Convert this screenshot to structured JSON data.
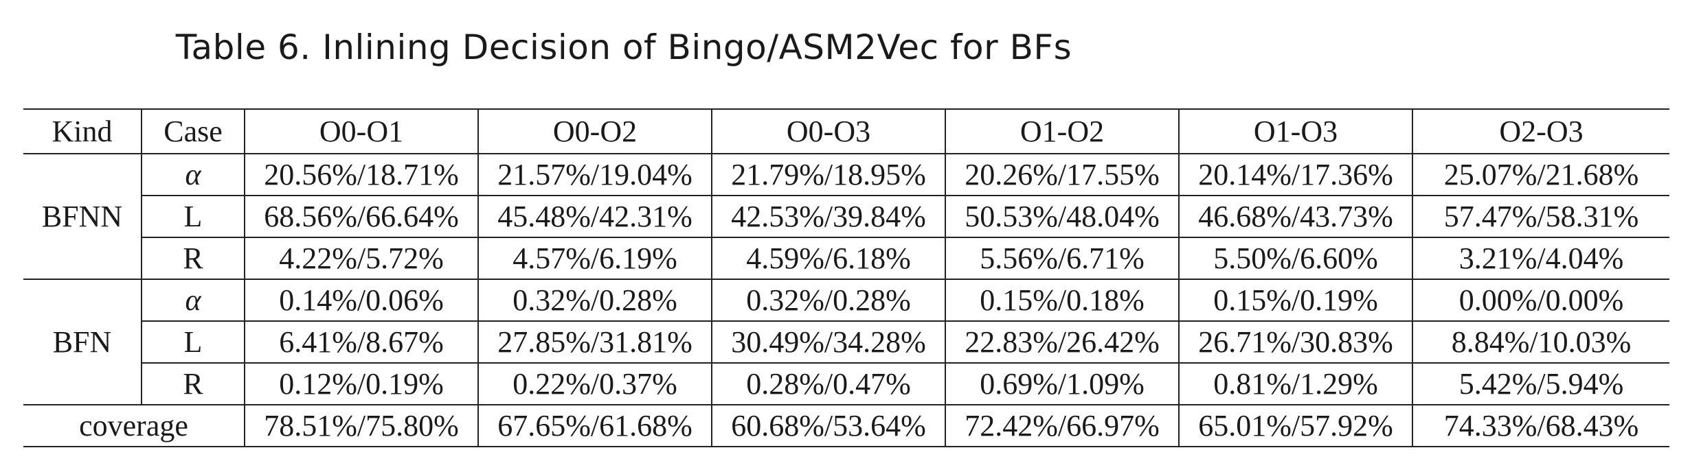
{
  "caption": "Table 6.  Inlining Decision of Bingo/ASM2Vec for BFs",
  "table": {
    "headers": [
      "Kind",
      "Case",
      "O0-O1",
      "O0-O2",
      "O0-O3",
      "O1-O2",
      "O1-O3",
      "O2-O3"
    ],
    "groups": [
      {
        "kind": "BFNN",
        "rows": [
          {
            "case": "α",
            "values": [
              "20.56%/18.71%",
              "21.57%/19.04%",
              "21.79%/18.95%",
              "20.26%/17.55%",
              "20.14%/17.36%",
              "25.07%/21.68%"
            ]
          },
          {
            "case": "L",
            "values": [
              "68.56%/66.64%",
              "45.48%/42.31%",
              "42.53%/39.84%",
              "50.53%/48.04%",
              "46.68%/43.73%",
              "57.47%/58.31%"
            ]
          },
          {
            "case": "R",
            "values": [
              "4.22%/5.72%",
              "4.57%/6.19%",
              "4.59%/6.18%",
              "5.56%/6.71%",
              "5.50%/6.60%",
              "3.21%/4.04%"
            ]
          }
        ]
      },
      {
        "kind": "BFN",
        "rows": [
          {
            "case": "α",
            "values": [
              "0.14%/0.06%",
              "0.32%/0.28%",
              "0.32%/0.28%",
              "0.15%/0.18%",
              "0.15%/0.19%",
              "0.00%/0.00%"
            ]
          },
          {
            "case": "L",
            "values": [
              "6.41%/8.67%",
              "27.85%/31.81%",
              "30.49%/34.28%",
              "22.83%/26.42%",
              "26.71%/30.83%",
              "8.84%/10.03%"
            ]
          },
          {
            "case": "R",
            "values": [
              "0.12%/0.19%",
              "0.22%/0.37%",
              "0.28%/0.47%",
              "0.69%/1.09%",
              "0.81%/1.29%",
              "5.42%/5.94%"
            ]
          }
        ]
      }
    ],
    "coverage": {
      "label": "coverage",
      "values": [
        "78.51%/75.80%",
        "67.65%/61.68%",
        "60.68%/53.64%",
        "72.42%/66.97%",
        "65.01%/57.92%",
        "74.33%/68.43%"
      ]
    }
  }
}
